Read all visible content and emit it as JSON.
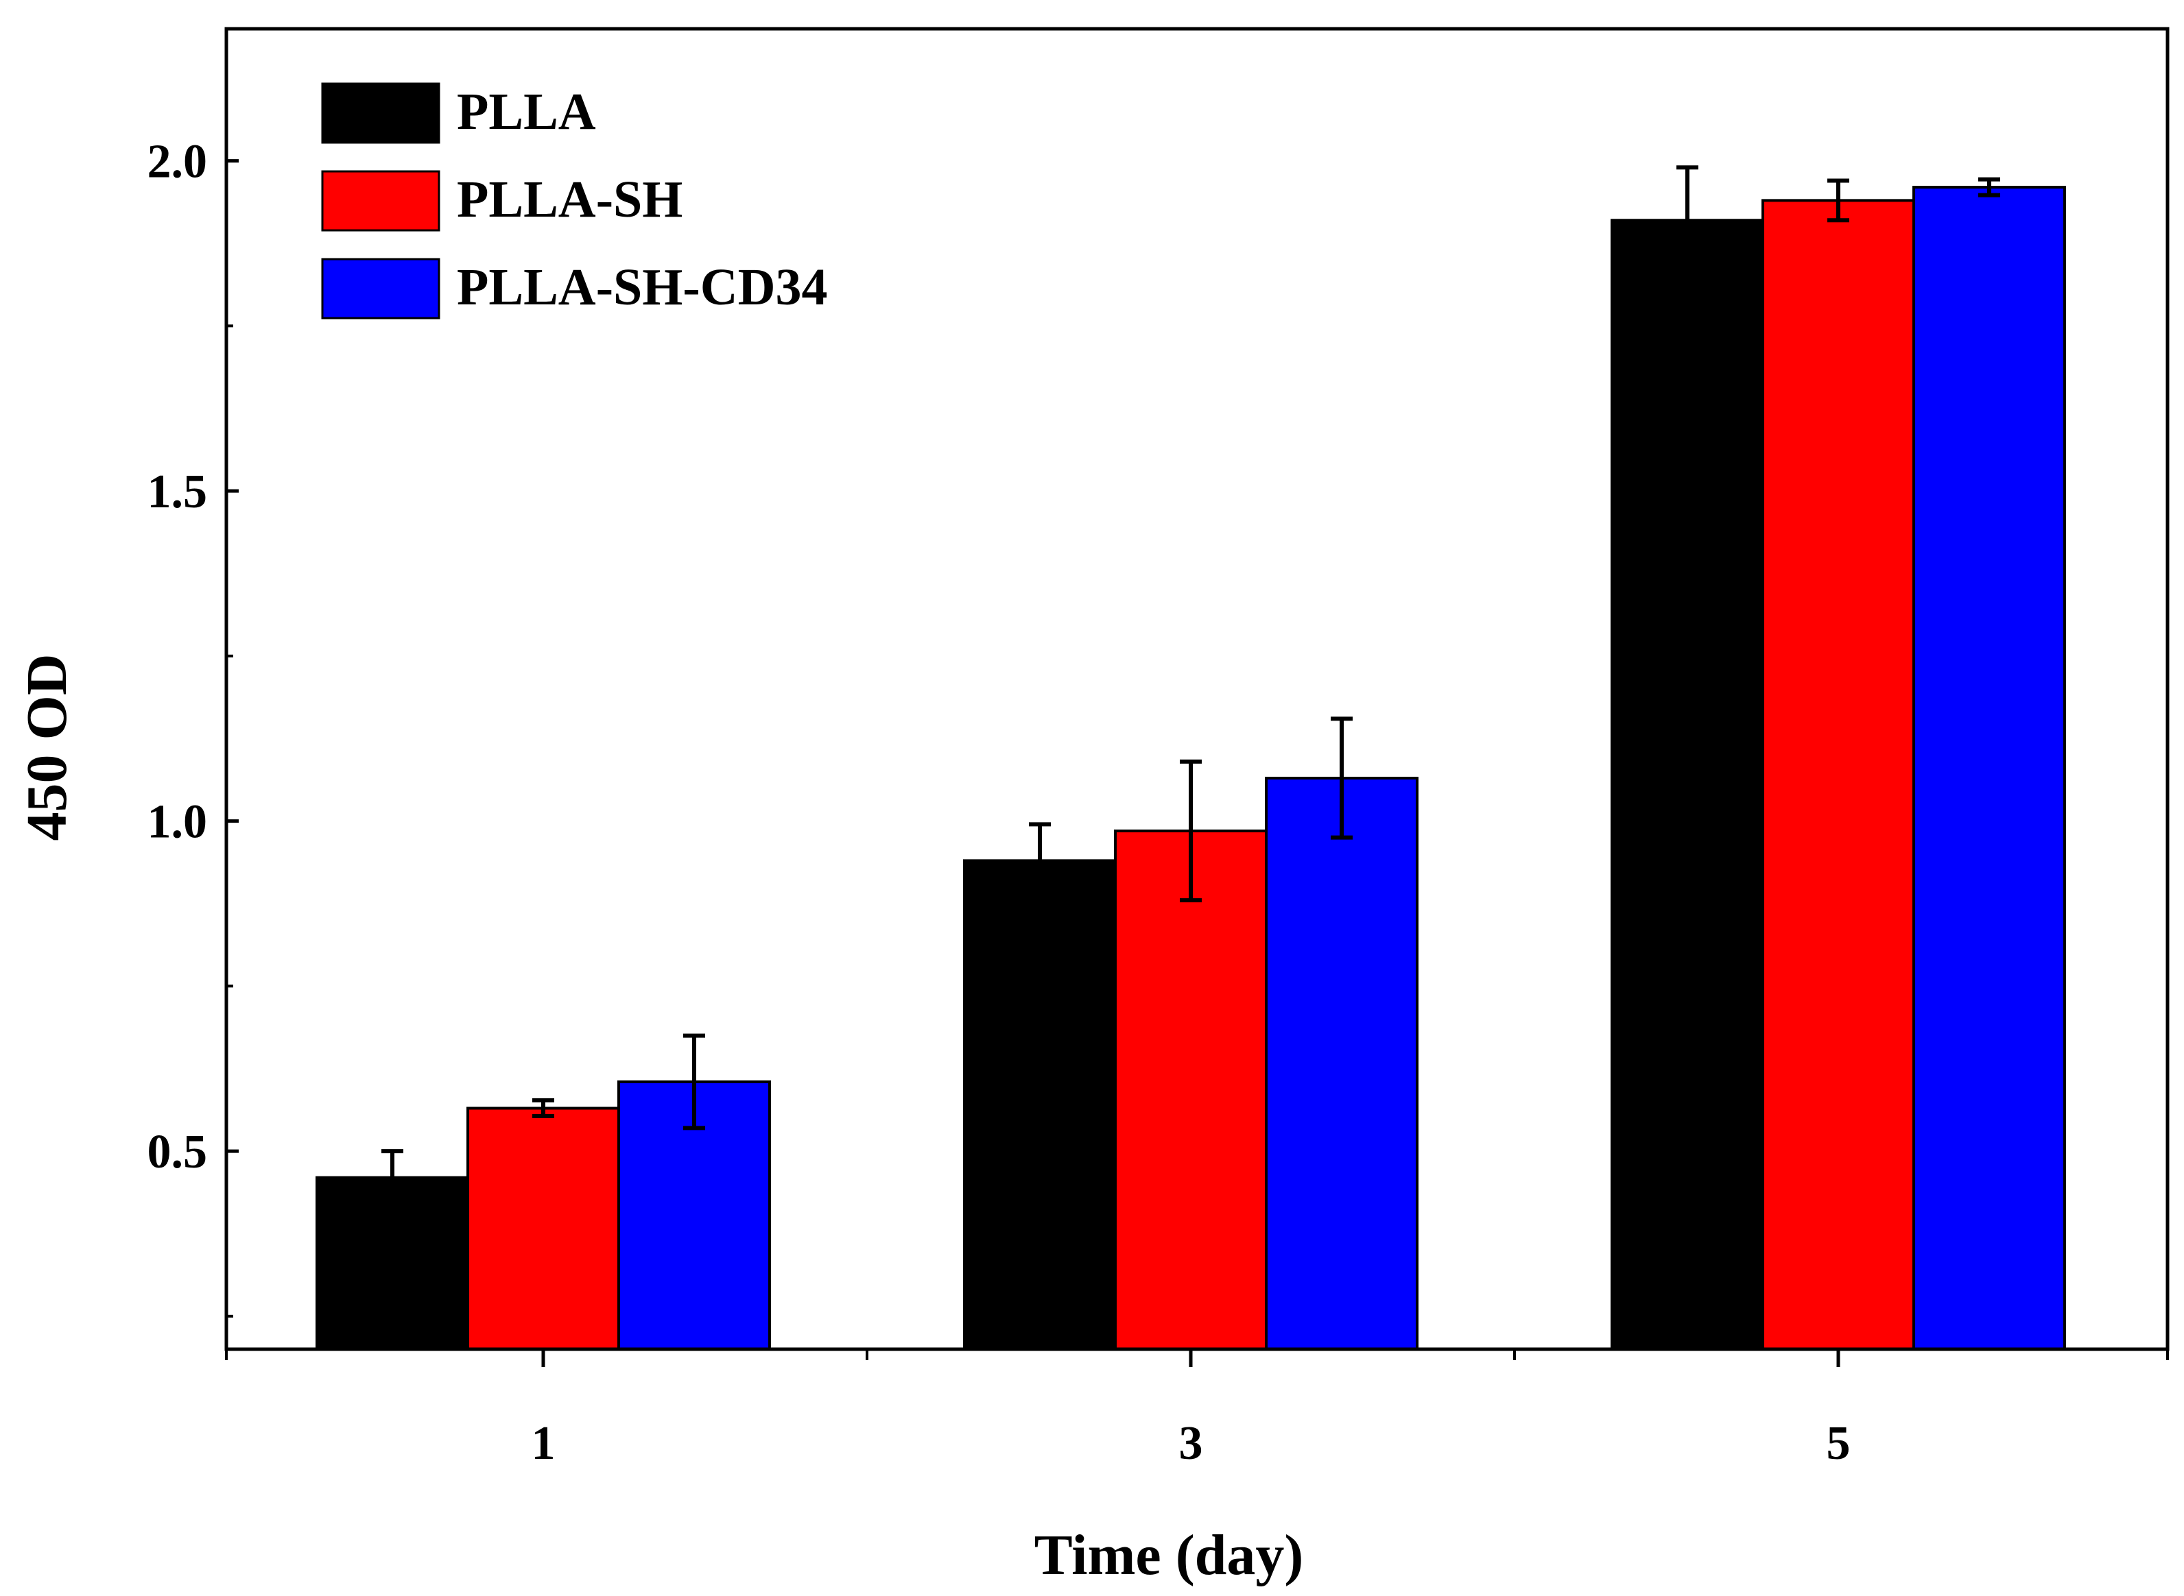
{
  "chart_data": {
    "type": "bar",
    "title": "",
    "xlabel": "Time (day)",
    "ylabel": "450 OD",
    "categories": [
      "1",
      "3",
      "5"
    ],
    "ylim": [
      0.2,
      2.2
    ],
    "yticks": [
      0.5,
      1.0,
      1.5,
      2.0
    ],
    "ytick_labels": [
      "0.5",
      "1.0",
      "1.5",
      "2.0"
    ],
    "grid": false,
    "legend_position": "top-left",
    "series": [
      {
        "name": "PLLA",
        "color": "#000000",
        "values": [
          0.46,
          0.94,
          1.91
        ],
        "errors": [
          0.04,
          0.055,
          0.08
        ]
      },
      {
        "name": "PLLA-SH",
        "color": "#ff0000",
        "values": [
          0.565,
          0.985,
          1.94
        ],
        "errors": [
          0.012,
          0.105,
          0.03
        ]
      },
      {
        "name": "PLLA-SH-CD34",
        "color": "#0000ff",
        "values": [
          0.605,
          1.065,
          1.96
        ],
        "errors": [
          0.07,
          0.09,
          0.012
        ]
      }
    ]
  }
}
